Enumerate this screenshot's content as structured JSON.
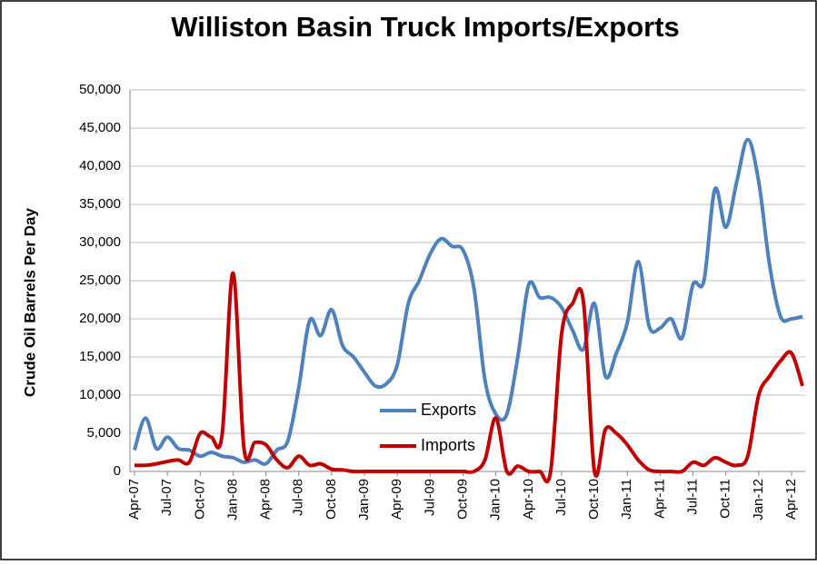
{
  "chart_data": {
    "type": "line",
    "title": "Williston Basin Truck Imports/Exports",
    "y_label": "Crude Oil Barrels Per Day",
    "categories": [
      "Apr-07",
      null,
      null,
      "Jul-07",
      null,
      null,
      "Oct-07",
      null,
      null,
      "Jan-08",
      null,
      null,
      "Apr-08",
      null,
      null,
      "Jul-08",
      null,
      null,
      "Oct-08",
      null,
      null,
      "Jan-09",
      null,
      null,
      "Apr-09",
      null,
      null,
      "Jul-09",
      null,
      null,
      "Oct-09",
      null,
      null,
      "Jan-10",
      null,
      null,
      "Apr-10",
      null,
      null,
      "Jul-10",
      null,
      null,
      "Oct-10",
      null,
      null,
      "Jan-11",
      null,
      null,
      "Apr-11",
      null,
      null,
      "Jul-11",
      null,
      null,
      "Oct-11",
      null,
      null,
      "Jan-12",
      null,
      null,
      "Apr-12",
      null
    ],
    "series": [
      {
        "name": "Exports",
        "color": "#4f81bd",
        "values": [
          2800,
          7000,
          3000,
          4500,
          3000,
          2800,
          2000,
          2500,
          2000,
          1800,
          1200,
          1500,
          1000,
          2800,
          4000,
          11000,
          19800,
          17800,
          21200,
          16500,
          15000,
          13000,
          11200,
          11500,
          14000,
          22000,
          25000,
          28500,
          30500,
          29500,
          29000,
          24000,
          12000,
          7500,
          7500,
          15000,
          24500,
          22800,
          22800,
          21500,
          18500,
          16000,
          22000,
          12500,
          15500,
          19500,
          27500,
          19000,
          18800,
          20000,
          17500,
          24500,
          25000,
          37000,
          32000,
          38000,
          43500,
          38000,
          27000,
          20300,
          20000,
          20300
        ]
      },
      {
        "name": "Imports",
        "color": "#c00000",
        "values": [
          800,
          800,
          1000,
          1300,
          1500,
          1200,
          5000,
          4500,
          4800,
          26000,
          3000,
          3800,
          3500,
          1500,
          500,
          2000,
          800,
          1000,
          300,
          200,
          0,
          0,
          0,
          0,
          0,
          0,
          0,
          0,
          0,
          0,
          0,
          0,
          1500,
          7000,
          0,
          700,
          0,
          0,
          0,
          18000,
          22000,
          22200,
          0,
          5500,
          5000,
          3500,
          1500,
          200,
          0,
          0,
          0,
          1200,
          800,
          1800,
          1200,
          800,
          2000,
          10000,
          12500,
          14500,
          15500,
          11200
        ]
      }
    ],
    "ylim": [
      0,
      50000
    ],
    "yticks": [
      0,
      {
        "value": 5000,
        "label": "5,000"
      },
      {
        "value": 10000,
        "label": "10,000"
      },
      {
        "value": 15000,
        "label": "15,000"
      },
      {
        "value": 20000,
        "label": "20,000"
      },
      {
        "value": 25000,
        "label": "25,000"
      },
      {
        "value": 30000,
        "label": "30,000"
      },
      {
        "value": 35000,
        "label": "35,000"
      },
      {
        "value": 40000,
        "label": "40,000"
      },
      {
        "value": 45000,
        "label": "45,000"
      },
      {
        "value": 50000,
        "label": "50,000"
      }
    ],
    "grid": true
  }
}
